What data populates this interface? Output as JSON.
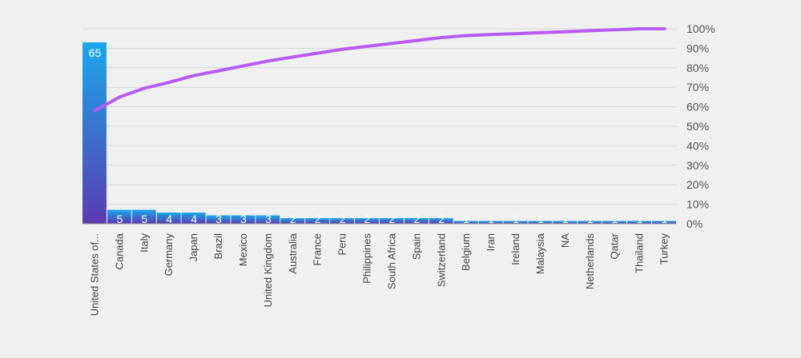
{
  "colors": {
    "background": "#f0f0f0",
    "bar_top": "#1aa8ec",
    "bar_bottom": "#5a3bb0",
    "pareto_line": "#b65cf2"
  },
  "chart_data": {
    "type": "bar",
    "title": "",
    "xlabel": "",
    "ylabel": "",
    "categories": [
      "United States of...",
      "Canada",
      "Italy",
      "Germany",
      "Japan",
      "Brazil",
      "Mexico",
      "United Kingdom",
      "Australia",
      "France",
      "Peru",
      "Philippines",
      "South Africa",
      "Spain",
      "Switzerland",
      "Belgium",
      "Iran",
      "Ireland",
      "Malaysia",
      "NA",
      "Netherlands",
      "Qatar",
      "Thailand",
      "Turkey"
    ],
    "values": [
      65,
      5,
      5,
      4,
      4,
      3,
      3,
      3,
      2,
      2,
      2,
      2,
      2,
      2,
      2,
      1,
      1,
      1,
      1,
      1,
      1,
      1,
      1,
      1
    ],
    "ylim": [
      0,
      65
    ],
    "y2_ticks": [
      "0%",
      "10%",
      "20%",
      "30%",
      "40%",
      "50%",
      "60%",
      "70%",
      "80%",
      "90%",
      "100%"
    ],
    "y2lim": [
      0,
      100
    ],
    "cumulative_percent": [
      58,
      65,
      69.5,
      72.5,
      76,
      78.5,
      81,
      83.5,
      85.5,
      87.5,
      89.5,
      91,
      92.5,
      94,
      95.5,
      96.5,
      97,
      97.5,
      98,
      98.5,
      99,
      99.5,
      100,
      100
    ],
    "grid": true,
    "legend": "none"
  }
}
